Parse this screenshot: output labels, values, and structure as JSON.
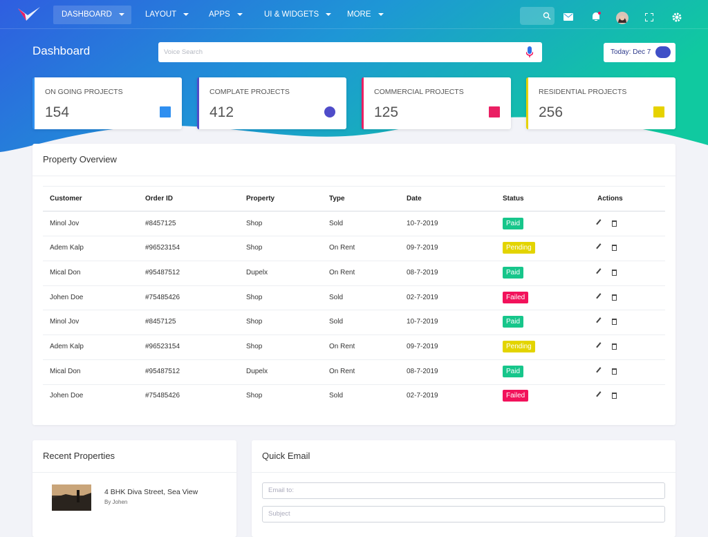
{
  "nav": {
    "items": [
      "DASHBOARD",
      "LAYOUT",
      "APPS",
      "UI & WIDGETS",
      "MORE"
    ]
  },
  "header": {
    "title": "Dashboard",
    "search_placeholder": "Voice Search",
    "date": "Today: Dec 7"
  },
  "stats": [
    {
      "label": "ON GOING PROJECTS",
      "value": "154",
      "color": "#2f8ff0"
    },
    {
      "label": "COMPLATE PROJECTS",
      "value": "412",
      "color": "#4f4cc9"
    },
    {
      "label": "COMMERCIAL PROJECTS",
      "value": "125",
      "color": "#ea1f63"
    },
    {
      "label": "RESIDENTIAL PROJECTS",
      "value": "256",
      "color": "#e6d200"
    }
  ],
  "property_overview": {
    "title": "Property Overview",
    "columns": [
      "Customer",
      "Order ID",
      "Property",
      "Type",
      "Date",
      "Status",
      "Actions"
    ],
    "rows": [
      {
        "customer": "Minol Jov",
        "order_id": "#8457125",
        "property": "Shop",
        "type": "Sold",
        "date": "10-7-2019",
        "status": {
          "label": "Paid",
          "color": "#17c68b"
        }
      },
      {
        "customer": "Adem Kalp",
        "order_id": "#96523154",
        "property": "Shop",
        "type": "On Rent",
        "date": "09-7-2019",
        "status": {
          "label": "Pending",
          "color": "#e3d400"
        }
      },
      {
        "customer": "Mical Don",
        "order_id": "#95487512",
        "property": "Dupelx",
        "type": "On Rent",
        "date": "08-7-2019",
        "status": {
          "label": "Paid",
          "color": "#17c68b"
        }
      },
      {
        "customer": "Johen Doe",
        "order_id": "#75485426",
        "property": "Shop",
        "type": "Sold",
        "date": "02-7-2019",
        "status": {
          "label": "Failed",
          "color": "#f2125b"
        }
      },
      {
        "customer": "Minol Jov",
        "order_id": "#8457125",
        "property": "Shop",
        "type": "Sold",
        "date": "10-7-2019",
        "status": {
          "label": "Paid",
          "color": "#17c68b"
        }
      },
      {
        "customer": "Adem Kalp",
        "order_id": "#96523154",
        "property": "Shop",
        "type": "On Rent",
        "date": "09-7-2019",
        "status": {
          "label": "Pending",
          "color": "#e3d400"
        }
      },
      {
        "customer": "Mical Don",
        "order_id": "#95487512",
        "property": "Dupelx",
        "type": "On Rent",
        "date": "08-7-2019",
        "status": {
          "label": "Paid",
          "color": "#17c68b"
        }
      },
      {
        "customer": "Johen Doe",
        "order_id": "#75485426",
        "property": "Shop",
        "type": "Sold",
        "date": "02-7-2019",
        "status": {
          "label": "Failed",
          "color": "#f2125b"
        }
      }
    ]
  },
  "recent_properties": {
    "title": "Recent Properties",
    "items": [
      {
        "title": "4 BHK Diva Street, Sea View",
        "by": "By Johen"
      }
    ]
  },
  "quick_email": {
    "title": "Quick Email",
    "email_placeholder": "Email to:",
    "subject_placeholder": "Subject"
  }
}
